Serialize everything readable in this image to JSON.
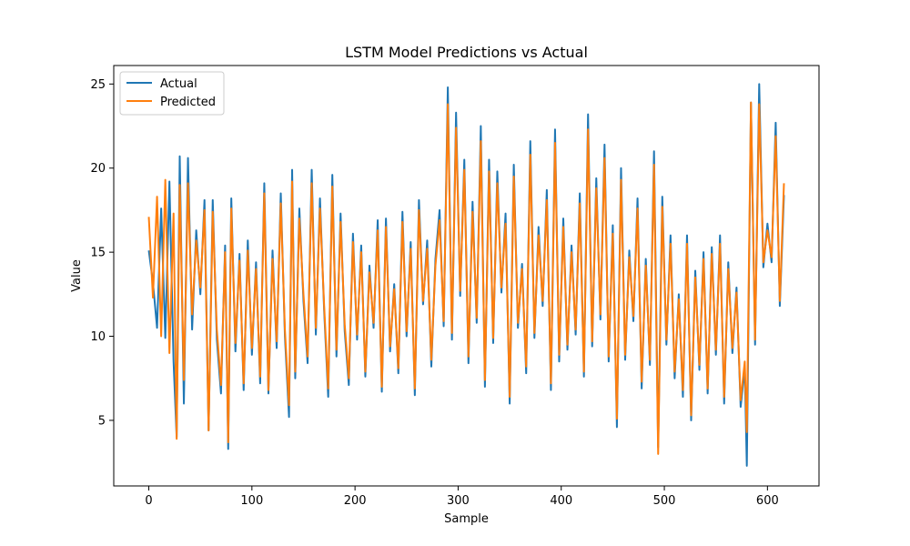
{
  "chart_data": {
    "type": "line",
    "title": "LSTM Model Predictions vs Actual",
    "xlabel": "Sample",
    "ylabel": "Value",
    "xlim": [
      -34,
      650
    ],
    "ylim": [
      1.1,
      26.1
    ],
    "xticks": [
      0,
      100,
      200,
      300,
      400,
      500,
      600
    ],
    "yticks": [
      5,
      10,
      15,
      20,
      25
    ],
    "grid": false,
    "legend": {
      "placement": "upper-left",
      "entries": [
        "Actual",
        "Predicted"
      ]
    },
    "series": [
      {
        "name": "Actual",
        "color": "#1f77b4",
        "x": [
          0,
          4,
          8,
          12,
          16,
          20,
          24,
          27,
          30,
          34,
          38,
          42,
          46,
          50,
          54,
          58,
          62,
          66,
          70,
          74,
          77,
          80,
          84,
          88,
          92,
          96,
          100,
          104,
          108,
          112,
          116,
          120,
          124,
          128,
          132,
          136,
          139,
          142,
          146,
          150,
          154,
          158,
          162,
          166,
          170,
          174,
          178,
          182,
          186,
          190,
          194,
          198,
          202,
          206,
          210,
          214,
          218,
          222,
          226,
          230,
          234,
          238,
          242,
          246,
          250,
          254,
          258,
          262,
          266,
          270,
          274,
          278,
          282,
          286,
          290,
          294,
          298,
          302,
          306,
          310,
          314,
          318,
          322,
          326,
          330,
          334,
          338,
          342,
          346,
          350,
          354,
          358,
          362,
          366,
          370,
          374,
          378,
          382,
          386,
          390,
          394,
          398,
          402,
          406,
          410,
          414,
          418,
          422,
          426,
          430,
          434,
          438,
          442,
          446,
          450,
          454,
          458,
          462,
          466,
          470,
          474,
          478,
          482,
          486,
          490,
          494,
          498,
          502,
          506,
          510,
          514,
          518,
          522,
          526,
          530,
          534,
          538,
          542,
          546,
          550,
          554,
          558,
          562,
          566,
          570,
          574,
          578,
          580,
          584,
          588,
          592,
          596,
          600,
          604,
          608,
          612,
          616
        ],
        "values": [
          15.1,
          13.2,
          10.5,
          17.6,
          9.9,
          19.2,
          8.5,
          4.0,
          20.7,
          6.0,
          20.6,
          10.4,
          16.3,
          12.5,
          18.1,
          4.4,
          18.1,
          9.8,
          6.6,
          15.4,
          3.3,
          18.2,
          9.1,
          14.9,
          6.8,
          15.7,
          8.9,
          14.4,
          7.2,
          19.1,
          6.6,
          15.1,
          9.3,
          18.5,
          10.0,
          5.2,
          19.9,
          7.5,
          17.6,
          12.1,
          8.4,
          19.9,
          10.1,
          18.2,
          11.6,
          6.4,
          19.6,
          8.8,
          17.3,
          10.3,
          7.1,
          16.1,
          9.8,
          15.4,
          7.6,
          14.2,
          10.5,
          16.9,
          6.7,
          17.0,
          9.1,
          13.1,
          7.8,
          17.4,
          10.0,
          15.6,
          6.5,
          18.1,
          11.9,
          15.7,
          8.2,
          14.6,
          17.5,
          10.6,
          24.8,
          9.8,
          23.3,
          12.4,
          20.5,
          8.4,
          18.0,
          10.8,
          22.5,
          7.0,
          20.5,
          9.6,
          19.8,
          12.6,
          17.3,
          6.0,
          20.2,
          10.5,
          14.3,
          7.8,
          21.6,
          9.9,
          16.5,
          11.8,
          18.7,
          6.8,
          22.3,
          8.5,
          17.0,
          9.2,
          15.4,
          10.1,
          18.5,
          7.6,
          23.2,
          9.4,
          19.4,
          11.0,
          21.4,
          8.5,
          16.6,
          4.6,
          20.0,
          8.6,
          15.1,
          10.9,
          18.2,
          6.9,
          14.6,
          8.3,
          21.0,
          3.4,
          18.3,
          9.5,
          16.0,
          7.5,
          12.5,
          6.4,
          16.0,
          5.0,
          13.9,
          8.0,
          15.0,
          6.6,
          15.3,
          8.9,
          16.0,
          6.0,
          14.4,
          9.0,
          12.9,
          5.8,
          8.1,
          2.3,
          23.9,
          9.5,
          25.0,
          14.1,
          16.7,
          14.4,
          22.7,
          11.8,
          18.4
        ]
      },
      {
        "name": "Predicted",
        "color": "#ff7f0e",
        "x": [
          0,
          4,
          8,
          12,
          16,
          20,
          24,
          27,
          30,
          34,
          38,
          42,
          46,
          50,
          54,
          58,
          62,
          66,
          70,
          74,
          77,
          80,
          84,
          88,
          92,
          96,
          100,
          104,
          108,
          112,
          116,
          120,
          124,
          128,
          132,
          136,
          139,
          142,
          146,
          150,
          154,
          158,
          162,
          166,
          170,
          174,
          178,
          182,
          186,
          190,
          194,
          198,
          202,
          206,
          210,
          214,
          218,
          222,
          226,
          230,
          234,
          238,
          242,
          246,
          250,
          254,
          258,
          262,
          266,
          270,
          274,
          278,
          282,
          286,
          290,
          294,
          298,
          302,
          306,
          310,
          314,
          318,
          322,
          326,
          330,
          334,
          338,
          342,
          346,
          350,
          354,
          358,
          362,
          366,
          370,
          374,
          378,
          382,
          386,
          390,
          394,
          398,
          402,
          406,
          410,
          414,
          418,
          422,
          426,
          430,
          434,
          438,
          442,
          446,
          450,
          454,
          458,
          462,
          466,
          470,
          474,
          478,
          482,
          486,
          490,
          494,
          498,
          502,
          506,
          510,
          514,
          518,
          522,
          526,
          530,
          534,
          538,
          542,
          546,
          550,
          554,
          558,
          562,
          566,
          570,
          574,
          578,
          580,
          584,
          588,
          592,
          596,
          600,
          604,
          608,
          612,
          616
        ],
        "values": [
          17.1,
          12.3,
          18.3,
          10.0,
          19.3,
          9.0,
          17.3,
          3.9,
          19.0,
          7.4,
          19.1,
          11.3,
          15.7,
          12.9,
          17.5,
          4.4,
          17.4,
          10.4,
          7.1,
          15.0,
          3.7,
          17.6,
          9.6,
          14.5,
          7.2,
          15.1,
          9.3,
          14.0,
          7.6,
          18.5,
          6.8,
          14.6,
          9.7,
          17.9,
          10.4,
          5.9,
          19.2,
          7.9,
          17.0,
          12.5,
          8.8,
          19.1,
          10.5,
          17.6,
          11.9,
          6.9,
          18.9,
          9.2,
          16.8,
          10.7,
          7.5,
          15.6,
          10.1,
          15.0,
          7.9,
          13.8,
          10.8,
          16.3,
          7.0,
          16.5,
          9.4,
          12.8,
          8.1,
          16.8,
          10.3,
          15.2,
          6.9,
          17.5,
          12.1,
          15.2,
          8.6,
          14.2,
          16.9,
          10.9,
          23.8,
          10.2,
          22.4,
          12.7,
          19.9,
          8.8,
          17.4,
          11.1,
          21.6,
          7.4,
          19.8,
          9.9,
          19.1,
          12.9,
          16.7,
          6.4,
          19.5,
          10.8,
          14.0,
          8.2,
          20.8,
          10.2,
          16.0,
          12.1,
          18.1,
          7.2,
          21.5,
          8.9,
          16.5,
          9.5,
          15.0,
          10.4,
          17.9,
          7.9,
          22.3,
          9.7,
          18.8,
          11.3,
          20.6,
          8.8,
          16.1,
          5.1,
          19.3,
          8.9,
          14.7,
          11.2,
          17.6,
          7.3,
          14.2,
          8.6,
          20.2,
          3.0,
          17.7,
          9.8,
          15.5,
          7.9,
          12.2,
          6.8,
          15.5,
          5.3,
          13.5,
          8.3,
          14.6,
          6.9,
          14.9,
          9.2,
          15.5,
          6.4,
          14.0,
          9.3,
          12.6,
          6.2,
          8.5,
          4.3,
          23.9,
          9.8,
          23.8,
          14.4,
          16.3,
          14.7,
          21.9,
          12.1,
          19.1
        ]
      }
    ]
  }
}
